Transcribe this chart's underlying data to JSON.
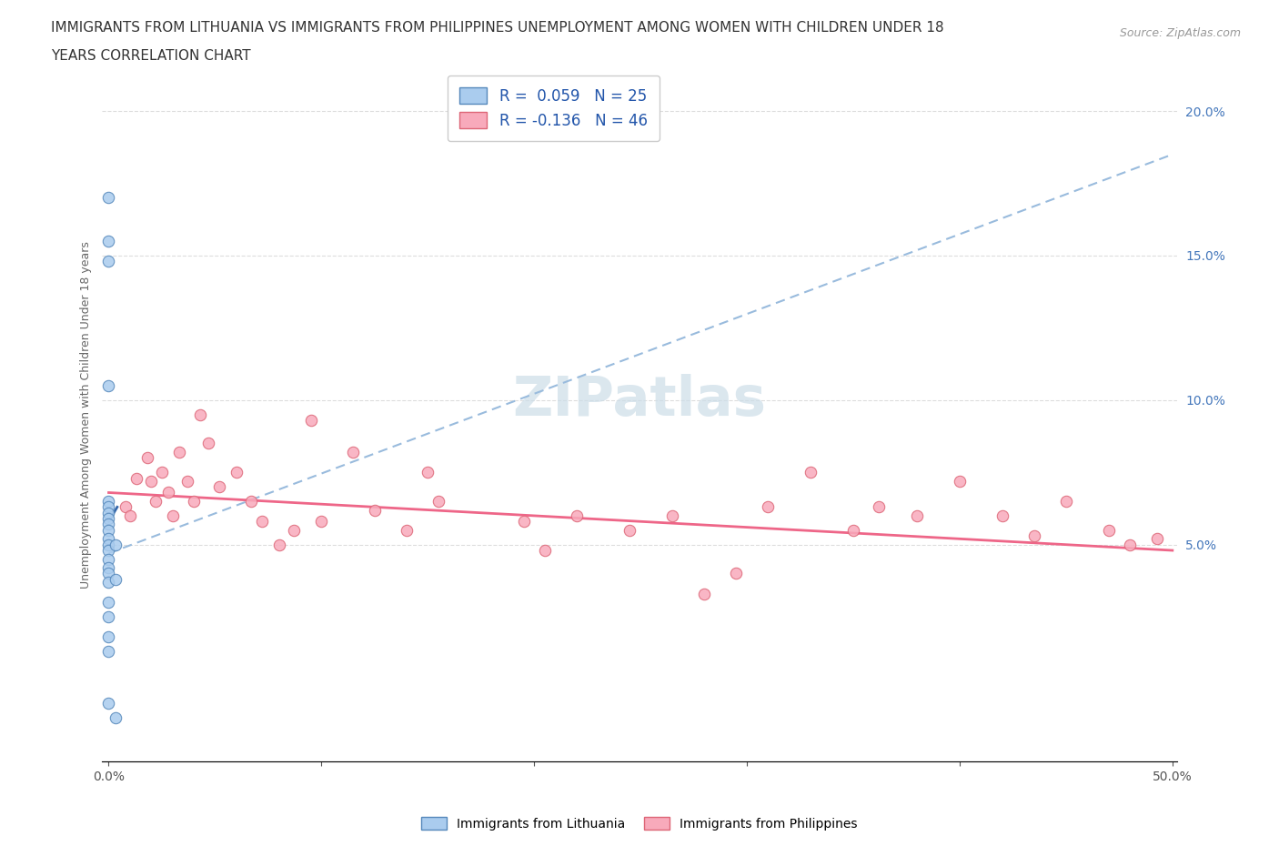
{
  "title_line1": "IMMIGRANTS FROM LITHUANIA VS IMMIGRANTS FROM PHILIPPINES UNEMPLOYMENT AMONG WOMEN WITH CHILDREN UNDER 18",
  "title_line2": "YEARS CORRELATION CHART",
  "source": "Source: ZipAtlas.com",
  "ylabel": "Unemployment Among Women with Children Under 18 years",
  "xlim": [
    -0.003,
    0.502
  ],
  "ylim": [
    -0.025,
    0.215
  ],
  "color_lithuania": "#aaccee",
  "color_lithuania_edge": "#5588bb",
  "color_philippines": "#f8aabb",
  "color_philippines_edge": "#dd6677",
  "color_trendline_lith_dashed": "#99bbdd",
  "color_trendline_lith_solid": "#3366aa",
  "color_trendline_phil": "#ee6688",
  "legend_label1": "R =  0.059   N = 25",
  "legend_label2": "R = -0.136   N = 46",
  "legend_text_color": "#2255aa",
  "watermark": "ZIPatlas",
  "watermark_color": "#ccdde8",
  "ytick_positions": [
    0.0,
    0.05,
    0.1,
    0.15,
    0.2
  ],
  "ytick_labels_right": [
    "",
    "5.0%",
    "10.0%",
    "15.0%",
    "20.0%"
  ],
  "xtick_positions": [
    0.0,
    0.1,
    0.2,
    0.3,
    0.4,
    0.5
  ],
  "xtick_labels": [
    "0.0%",
    "",
    "",
    "",
    "",
    "50.0%"
  ],
  "lith_x": [
    0.0,
    0.0,
    0.0,
    0.0,
    0.0,
    0.0,
    0.0,
    0.0,
    0.0,
    0.0,
    0.0,
    0.0,
    0.0,
    0.0,
    0.0,
    0.0,
    0.0,
    0.0,
    0.0,
    0.0,
    0.0,
    0.0,
    0.003,
    0.003,
    0.003
  ],
  "lith_y": [
    0.17,
    0.155,
    0.148,
    0.105,
    0.065,
    0.063,
    0.061,
    0.059,
    0.057,
    0.055,
    0.052,
    0.05,
    0.048,
    0.045,
    0.042,
    0.04,
    0.037,
    0.03,
    0.025,
    0.018,
    0.013,
    -0.005,
    0.05,
    0.038,
    -0.01
  ],
  "phil_x": [
    0.008,
    0.01,
    0.013,
    0.018,
    0.02,
    0.022,
    0.025,
    0.028,
    0.03,
    0.033,
    0.037,
    0.04,
    0.043,
    0.047,
    0.052,
    0.06,
    0.067,
    0.072,
    0.08,
    0.087,
    0.095,
    0.1,
    0.115,
    0.125,
    0.14,
    0.15,
    0.155,
    0.195,
    0.205,
    0.22,
    0.245,
    0.265,
    0.28,
    0.295,
    0.31,
    0.33,
    0.35,
    0.362,
    0.38,
    0.4,
    0.42,
    0.435,
    0.45,
    0.47,
    0.48,
    0.493
  ],
  "phil_y": [
    0.063,
    0.06,
    0.073,
    0.08,
    0.072,
    0.065,
    0.075,
    0.068,
    0.06,
    0.082,
    0.072,
    0.065,
    0.095,
    0.085,
    0.07,
    0.075,
    0.065,
    0.058,
    0.05,
    0.055,
    0.093,
    0.058,
    0.082,
    0.062,
    0.055,
    0.075,
    0.065,
    0.058,
    0.048,
    0.06,
    0.055,
    0.06,
    0.033,
    0.04,
    0.063,
    0.075,
    0.055,
    0.063,
    0.06,
    0.072,
    0.06,
    0.053,
    0.065,
    0.055,
    0.05,
    0.052
  ],
  "dashed_trendline_x": [
    0.0,
    0.5
  ],
  "dashed_trendline_y": [
    0.047,
    0.185
  ],
  "solid_lith_trendline_x": [
    0.0,
    0.004
  ],
  "solid_lith_trendline_y": [
    0.058,
    0.063
  ],
  "phil_trendline_x": [
    0.0,
    0.5
  ],
  "phil_trendline_y": [
    0.068,
    0.048
  ]
}
